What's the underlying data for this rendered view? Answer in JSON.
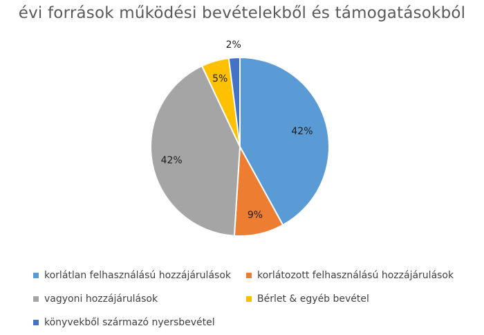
{
  "chart_data": {
    "type": "pie",
    "title": "évi források működési bevételekből és támogatásokból",
    "categories": [
      "korlátlan felhasználású hozzájárulások",
      "korlátozott felhasználású hozzájárulások",
      "vagyoni hozzájárulások",
      "Bérlet & egyéb bevétel",
      "könyvekből származó nyersbevétel"
    ],
    "values": [
      42,
      9,
      42,
      5,
      2
    ],
    "data_labels": [
      "42%",
      "9%",
      "42%",
      "5%",
      "2%"
    ],
    "colors": [
      "#5B9BD5",
      "#ED7D31",
      "#A5A5A5",
      "#FFC000",
      "#4472C4"
    ],
    "legend_position": "bottom"
  }
}
